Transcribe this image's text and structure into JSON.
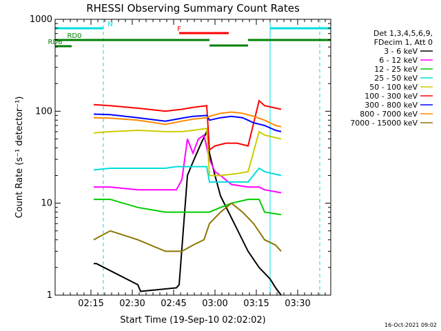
{
  "chart_data": {
    "type": "line",
    "title": "RHESSI Observing Summary Count Rates",
    "xlabel": "Start Time (19-Sep-10 02:02:02)",
    "ylabel": "Count Rate (s⁻¹ detector⁻¹)",
    "yscale": "log",
    "ylim": [
      1,
      1000
    ],
    "xlim_min": [
      0,
      100
    ],
    "yticks": [
      {
        "value": 1,
        "label": "1"
      },
      {
        "value": 10,
        "label": "10"
      },
      {
        "value": 100,
        "label": "100"
      },
      {
        "value": 1000,
        "label": "1000"
      }
    ],
    "xticks": [
      {
        "value": 13,
        "label": "02:15"
      },
      {
        "value": 28,
        "label": "02:30"
      },
      {
        "value": 43,
        "label": "02:45"
      },
      {
        "value": 58,
        "label": "03:00"
      },
      {
        "value": 73,
        "label": "03:15"
      },
      {
        "value": 88,
        "label": "03:30"
      }
    ],
    "legend_header": [
      "Det 1,3,4,5,6,9,",
      "FDecim 1, Att 0"
    ],
    "legend_position": "right",
    "series": [
      {
        "name": "3 - 6 keV",
        "color": "#000000",
        "x": [
          14,
          15,
          30,
          31,
          44,
          45,
          48,
          50,
          53,
          55,
          56,
          58,
          60,
          65,
          70,
          74,
          78,
          80,
          82
        ],
        "y": [
          2.2,
          2.2,
          1.3,
          1.1,
          1.2,
          1.3,
          20,
          28,
          45,
          60,
          35,
          20,
          12,
          6,
          3,
          2,
          1.5,
          1.2,
          1
        ]
      },
      {
        "name": "6 - 12 keV",
        "color": "#ff00ff",
        "x": [
          14,
          20,
          30,
          44,
          46,
          48,
          50,
          52,
          54,
          56,
          58,
          60,
          64,
          70,
          74,
          76,
          82
        ],
        "y": [
          15,
          15,
          14,
          14,
          18,
          50,
          35,
          50,
          55,
          30,
          22,
          20,
          16,
          15,
          15,
          14,
          13
        ]
      },
      {
        "name": "12 - 25 keV",
        "color": "#00cc00",
        "x": [
          14,
          20,
          30,
          40,
          44,
          50,
          56,
          60,
          64,
          70,
          74,
          76,
          82
        ],
        "y": [
          11,
          11,
          9,
          8,
          8,
          8,
          8,
          9,
          10,
          11,
          11,
          8,
          7.5
        ]
      },
      {
        "name": "25 - 50 keV",
        "color": "#00dddd",
        "x": [
          14,
          20,
          30,
          40,
          44,
          50,
          55,
          56,
          64,
          70,
          74,
          76,
          82
        ],
        "y": [
          23,
          24,
          24,
          24,
          25,
          25,
          25,
          17,
          17,
          17,
          24,
          22,
          20
        ]
      },
      {
        "name": "50 - 100 keV",
        "color": "#cccc00",
        "x": [
          14,
          20,
          30,
          40,
          46,
          50,
          55,
          56,
          60,
          66,
          70,
          74,
          76,
          82
        ],
        "y": [
          58,
          60,
          62,
          60,
          60,
          62,
          65,
          20,
          20,
          21,
          22,
          60,
          55,
          50
        ]
      },
      {
        "name": "100 - 300 keV",
        "color": "#ff0000",
        "x": [
          14,
          20,
          30,
          40,
          46,
          50,
          55,
          56,
          58,
          62,
          66,
          70,
          74,
          76,
          82
        ],
        "y": [
          118,
          115,
          108,
          100,
          105,
          110,
          115,
          38,
          42,
          45,
          45,
          42,
          130,
          115,
          105
        ]
      },
      {
        "name": "300 - 800 keV",
        "color": "#0000ff",
        "x": [
          14,
          20,
          30,
          40,
          46,
          50,
          55,
          56,
          60,
          64,
          68,
          72,
          76,
          80,
          82
        ],
        "y": [
          93,
          92,
          85,
          78,
          84,
          88,
          90,
          80,
          85,
          88,
          85,
          75,
          70,
          62,
          60
        ]
      },
      {
        "name": "800 - 7000 keV",
        "color": "#ff8800",
        "x": [
          14,
          20,
          30,
          40,
          46,
          50,
          55,
          56,
          60,
          64,
          68,
          72,
          76,
          80,
          82
        ],
        "y": [
          85,
          84,
          80,
          72,
          78,
          82,
          85,
          88,
          95,
          98,
          95,
          88,
          80,
          70,
          68
        ]
      },
      {
        "name": "7000 - 15000 keV",
        "color": "#8b7500",
        "x": [
          14,
          20,
          30,
          40,
          46,
          50,
          54,
          56,
          60,
          64,
          68,
          72,
          76,
          80,
          82
        ],
        "y": [
          4,
          5,
          4,
          3,
          3,
          3.5,
          4,
          6,
          8,
          10,
          8,
          6,
          4,
          3.5,
          3
        ]
      }
    ],
    "flags": [
      {
        "label": "N",
        "color": "#00dddd",
        "label_x": 20,
        "segments": [
          [
            0,
            17.5
          ],
          [
            78,
            100
          ]
        ]
      },
      {
        "label": "RD0",
        "color": "#008000",
        "label_x": 7,
        "segments": [
          [
            0,
            56
          ],
          [
            70,
            100
          ]
        ]
      },
      {
        "label": "",
        "color": "#008000",
        "label_x": 0,
        "segments": [
          [
            56,
            70
          ]
        ]
      },
      {
        "label": "RD6",
        "color": "#008000",
        "label_x": 0,
        "segments": [
          [
            0,
            6
          ]
        ]
      },
      {
        "label": "F",
        "color": "#ff0000",
        "label_x": 45,
        "segments": [
          [
            45,
            63
          ]
        ]
      }
    ],
    "vertical_lines": [
      {
        "x": 0,
        "color": "#00dddd",
        "dashed": false
      },
      {
        "x": 17.5,
        "color": "#00dddd",
        "dashed": true
      },
      {
        "x": 78,
        "color": "#00dddd",
        "dashed": false
      },
      {
        "x": 96,
        "color": "#00dddd",
        "dashed": true
      }
    ]
  },
  "footer": {
    "timestamp": "16-Oct-2021 09:02"
  }
}
